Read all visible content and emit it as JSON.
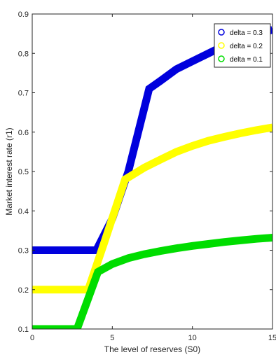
{
  "chart_data": {
    "type": "line",
    "title": "",
    "xlabel": "The level of reserves (S0)",
    "ylabel": "Market interest rate (r1)",
    "xlim": [
      0,
      15
    ],
    "ylim": [
      0.1,
      0.9
    ],
    "xticks": [
      "0",
      "5",
      "10",
      "15"
    ],
    "xtick_values": [
      0,
      5,
      10,
      15
    ],
    "yticks": [
      "0.1",
      "0.2",
      "0.3",
      "0.4",
      "0.5",
      "0.6",
      "0.7",
      "0.8",
      "0.9"
    ],
    "ytick_values": [
      0.1,
      0.2,
      0.3,
      0.4,
      0.5,
      0.6,
      0.7,
      0.8,
      0.9
    ],
    "grid": false,
    "legend_position": "top-right",
    "series": [
      {
        "name": "delta = 0.3",
        "color": "#0000dd",
        "x": [
          0,
          4,
          5,
          6,
          7.3,
          8,
          9,
          10,
          11,
          12,
          13,
          14,
          15
        ],
        "y": [
          0.3,
          0.3,
          0.38,
          0.5,
          0.71,
          0.73,
          0.76,
          0.78,
          0.8,
          0.82,
          0.835,
          0.848,
          0.86
        ]
      },
      {
        "name": "delta = 0.2",
        "color": "#ffff00",
        "x": [
          0,
          3.5,
          4.5,
          5.8,
          7,
          8,
          9,
          10,
          11,
          12,
          13,
          14,
          15
        ],
        "y": [
          0.2,
          0.2,
          0.32,
          0.48,
          0.51,
          0.53,
          0.55,
          0.565,
          0.578,
          0.588,
          0.597,
          0.605,
          0.612
        ]
      },
      {
        "name": "delta = 0.1",
        "color": "#00dd00",
        "x": [
          0,
          2.8,
          4.1,
          5,
          6,
          7,
          8,
          9,
          10,
          11,
          12,
          13,
          14,
          15
        ],
        "y": [
          0.1,
          0.1,
          0.245,
          0.265,
          0.28,
          0.29,
          0.298,
          0.305,
          0.311,
          0.316,
          0.321,
          0.325,
          0.329,
          0.332
        ]
      }
    ]
  }
}
